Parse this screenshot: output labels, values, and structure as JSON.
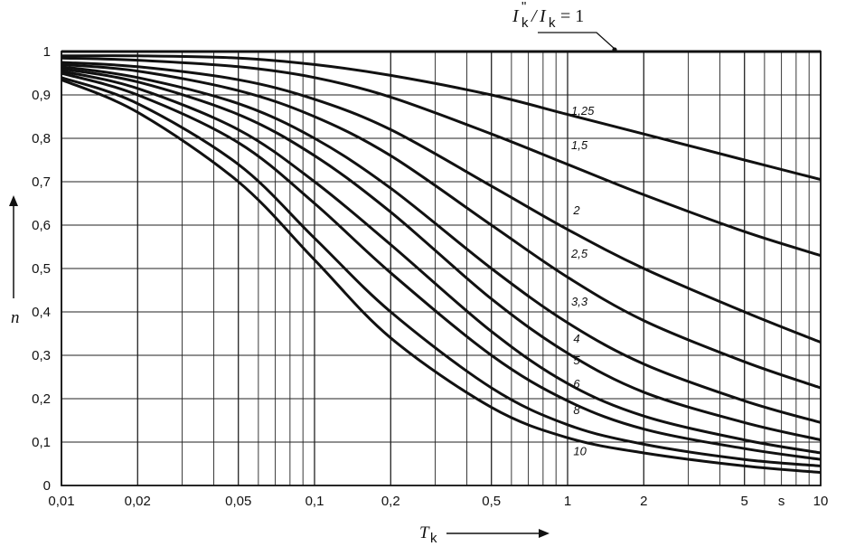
{
  "chart_data": {
    "type": "line",
    "x_scale": "log",
    "xlim": [
      0.01,
      10
    ],
    "ylim": [
      0,
      1
    ],
    "grid": true,
    "x_ticks": [
      {
        "value": 0.01,
        "label": "0,01"
      },
      {
        "value": 0.02,
        "label": "0,02"
      },
      {
        "value": 0.05,
        "label": "0,05"
      },
      {
        "value": 0.1,
        "label": "0,1"
      },
      {
        "value": 0.2,
        "label": "0,2"
      },
      {
        "value": 0.5,
        "label": "0,5"
      },
      {
        "value": 1,
        "label": "1"
      },
      {
        "value": 2,
        "label": "2"
      },
      {
        "value": 5,
        "label": "5"
      },
      {
        "value": 10,
        "label": "10"
      }
    ],
    "y_ticks": [
      {
        "value": 0,
        "label": "0"
      },
      {
        "value": 0.1,
        "label": "0,1"
      },
      {
        "value": 0.2,
        "label": "0,2"
      },
      {
        "value": 0.3,
        "label": "0,3"
      },
      {
        "value": 0.4,
        "label": "0,4"
      },
      {
        "value": 0.5,
        "label": "0,5"
      },
      {
        "value": 0.6,
        "label": "0,6"
      },
      {
        "value": 0.7,
        "label": "0,7"
      },
      {
        "value": 0.8,
        "label": "0,8"
      },
      {
        "value": 0.9,
        "label": "0,9"
      },
      {
        "value": 1,
        "label": "1"
      }
    ],
    "x_unit": "s",
    "xlabel": "T",
    "xlabel_sub": "k",
    "ylabel": "n",
    "ratio_label": {
      "num": "I",
      "num_sub": "k",
      "num_sup": "\"",
      "den": "I",
      "den_sub": "k",
      "suffix": "= 1"
    },
    "series": [
      {
        "name": "1",
        "x": [
          0.01,
          10
        ],
        "y": [
          1.0,
          1.0
        ]
      },
      {
        "name": "1,25",
        "x": [
          0.01,
          0.02,
          0.05,
          0.1,
          0.2,
          0.5,
          1,
          2,
          5,
          10
        ],
        "y": [
          0.99,
          0.99,
          0.985,
          0.97,
          0.945,
          0.9,
          0.855,
          0.81,
          0.75,
          0.705
        ]
      },
      {
        "name": "1,5",
        "x": [
          0.01,
          0.02,
          0.05,
          0.1,
          0.2,
          0.5,
          1,
          2,
          5,
          10
        ],
        "y": [
          0.985,
          0.98,
          0.965,
          0.94,
          0.895,
          0.81,
          0.74,
          0.67,
          0.585,
          0.53
        ]
      },
      {
        "name": "2",
        "x": [
          0.01,
          0.02,
          0.05,
          0.1,
          0.2,
          0.5,
          1,
          2,
          5,
          10
        ],
        "y": [
          0.975,
          0.965,
          0.935,
          0.89,
          0.82,
          0.69,
          0.59,
          0.5,
          0.4,
          0.33
        ]
      },
      {
        "name": "2,5",
        "x": [
          0.01,
          0.02,
          0.05,
          0.1,
          0.2,
          0.5,
          1,
          2,
          5,
          10
        ],
        "y": [
          0.97,
          0.955,
          0.91,
          0.85,
          0.76,
          0.6,
          0.48,
          0.38,
          0.285,
          0.225
        ]
      },
      {
        "name": "3,3",
        "x": [
          0.01,
          0.02,
          0.05,
          0.1,
          0.2,
          0.5,
          1,
          2,
          5,
          10
        ],
        "y": [
          0.965,
          0.94,
          0.88,
          0.8,
          0.685,
          0.5,
          0.375,
          0.28,
          0.195,
          0.145
        ]
      },
      {
        "name": "4",
        "x": [
          0.01,
          0.02,
          0.05,
          0.1,
          0.2,
          0.5,
          1,
          2,
          5,
          10
        ],
        "y": [
          0.96,
          0.93,
          0.855,
          0.76,
          0.63,
          0.43,
          0.305,
          0.215,
          0.145,
          0.105
        ]
      },
      {
        "name": "5",
        "x": [
          0.01,
          0.02,
          0.05,
          0.1,
          0.2,
          0.5,
          1,
          2,
          5,
          10
        ],
        "y": [
          0.955,
          0.915,
          0.82,
          0.7,
          0.555,
          0.355,
          0.235,
          0.16,
          0.105,
          0.075
        ]
      },
      {
        "name": "6",
        "x": [
          0.01,
          0.02,
          0.05,
          0.1,
          0.2,
          0.5,
          1,
          2,
          5,
          10
        ],
        "y": [
          0.95,
          0.9,
          0.79,
          0.65,
          0.49,
          0.3,
          0.195,
          0.13,
          0.085,
          0.06
        ]
      },
      {
        "name": "8",
        "x": [
          0.01,
          0.02,
          0.05,
          0.1,
          0.2,
          0.5,
          1,
          2,
          5,
          10
        ],
        "y": [
          0.94,
          0.88,
          0.74,
          0.57,
          0.4,
          0.225,
          0.14,
          0.095,
          0.06,
          0.045
        ]
      },
      {
        "name": "10",
        "x": [
          0.01,
          0.02,
          0.05,
          0.1,
          0.2,
          0.5,
          1,
          2,
          5,
          10
        ],
        "y": [
          0.935,
          0.86,
          0.7,
          0.52,
          0.34,
          0.18,
          0.11,
          0.075,
          0.045,
          0.03
        ]
      }
    ],
    "curve_labels": [
      {
        "text": "1,25",
        "x": 1.0,
        "y": 0.865
      },
      {
        "text": "1,5",
        "x": 1.0,
        "y": 0.785
      },
      {
        "text": "2",
        "x": 1.02,
        "y": 0.635
      },
      {
        "text": "2,5",
        "x": 1.0,
        "y": 0.535
      },
      {
        "text": "3,3",
        "x": 1.0,
        "y": 0.425
      },
      {
        "text": "4",
        "x": 1.02,
        "y": 0.34
      },
      {
        "text": "5",
        "x": 1.02,
        "y": 0.29
      },
      {
        "text": "6",
        "x": 1.02,
        "y": 0.235
      },
      {
        "text": "8",
        "x": 1.02,
        "y": 0.175
      },
      {
        "text": "10",
        "x": 1.02,
        "y": 0.08
      }
    ]
  }
}
